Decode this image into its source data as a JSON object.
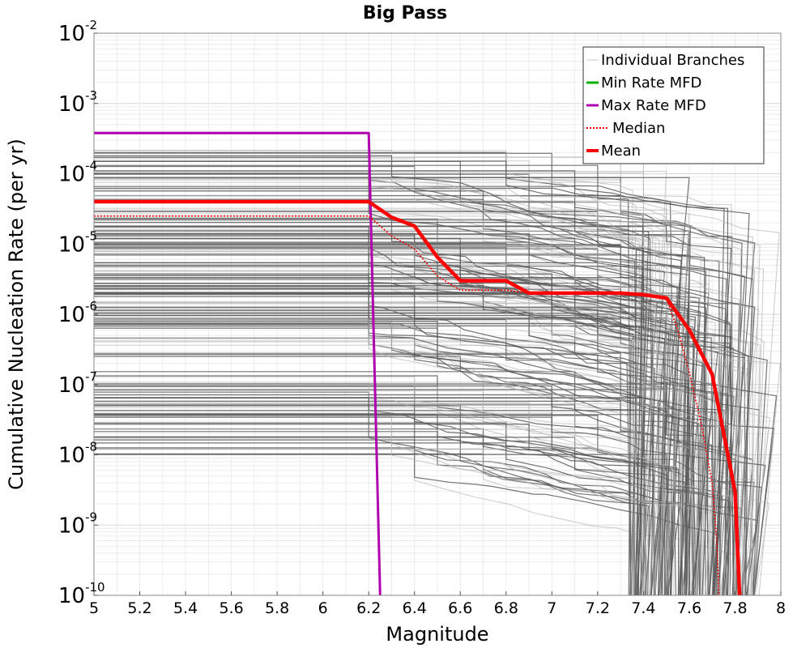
{
  "chart_data": {
    "type": "line",
    "title": "Big Pass",
    "xlabel": "Magnitude",
    "ylabel": "Cumulative Nucleation Rate (per yr)",
    "xlim": [
      5,
      8
    ],
    "ylim": [
      1e-10,
      0.01
    ],
    "yscale": "log",
    "grid": true,
    "x_ticks": [
      "5",
      "5.2",
      "5.4",
      "5.6",
      "5.8",
      "6",
      "6.2",
      "6.4",
      "6.6",
      "6.8",
      "7",
      "7.2",
      "7.4",
      "7.6",
      "7.8",
      "8"
    ],
    "y_ticks": [
      {
        "base": "10",
        "exp": "-2"
      },
      {
        "base": "10",
        "exp": "-3"
      },
      {
        "base": "10",
        "exp": "-4"
      },
      {
        "base": "10",
        "exp": "-5"
      },
      {
        "base": "10",
        "exp": "-6"
      },
      {
        "base": "10",
        "exp": "-7"
      },
      {
        "base": "10",
        "exp": "-8"
      },
      {
        "base": "10",
        "exp": "-9"
      },
      {
        "base": "10",
        "exp": "-10"
      }
    ],
    "legend": {
      "placement": "top-right",
      "entries": [
        {
          "label": "Individual Branches",
          "color": "#c8c8c8",
          "style": "thin"
        },
        {
          "label": "Min Rate MFD",
          "color": "#00b000",
          "style": "solid"
        },
        {
          "label": "Max Rate MFD",
          "color": "#b000b0",
          "style": "solid"
        },
        {
          "label": "Median",
          "color": "#ff0000",
          "style": "dotted"
        },
        {
          "label": "Mean",
          "color": "#ff0000",
          "style": "thick"
        }
      ]
    },
    "series": [
      {
        "name": "Max Rate MFD",
        "color": "#b000b0",
        "x": [
          5.0,
          6.2,
          6.25
        ],
        "y": [
          0.00038,
          0.00038,
          1e-10
        ]
      },
      {
        "name": "Median",
        "color": "#ff0000",
        "x": [
          5.0,
          6.2,
          6.3,
          6.4,
          6.5,
          6.6,
          6.7,
          6.8,
          6.9,
          7.0,
          7.1,
          7.2,
          7.3,
          7.4,
          7.5,
          7.55,
          7.6,
          7.65,
          7.7,
          7.72,
          7.73
        ],
        "y": [
          2.5e-05,
          2.5e-05,
          1.3e-05,
          8.5e-06,
          3.5e-06,
          2.2e-06,
          2.2e-06,
          2.2e-06,
          2e-06,
          2e-06,
          2e-06,
          2e-06,
          2e-06,
          1.9e-06,
          1.7e-06,
          6e-07,
          1.5e-07,
          3e-08,
          4e-09,
          6e-10,
          1e-10
        ]
      },
      {
        "name": "Mean",
        "color": "#ff0000",
        "x": [
          5.0,
          6.2,
          6.3,
          6.4,
          6.5,
          6.6,
          6.7,
          6.8,
          6.9,
          7.0,
          7.1,
          7.2,
          7.3,
          7.4,
          7.5,
          7.6,
          7.7,
          7.8,
          7.82
        ],
        "y": [
          4e-05,
          4e-05,
          2.4e-05,
          1.8e-05,
          6.5e-06,
          3e-06,
          3e-06,
          3e-06,
          2e-06,
          2e-06,
          2e-06,
          2e-06,
          2e-06,
          1.9e-06,
          1.7e-06,
          6e-07,
          1.4e-07,
          3e-09,
          1e-10
        ]
      }
    ],
    "branches_note_count": 220
  }
}
